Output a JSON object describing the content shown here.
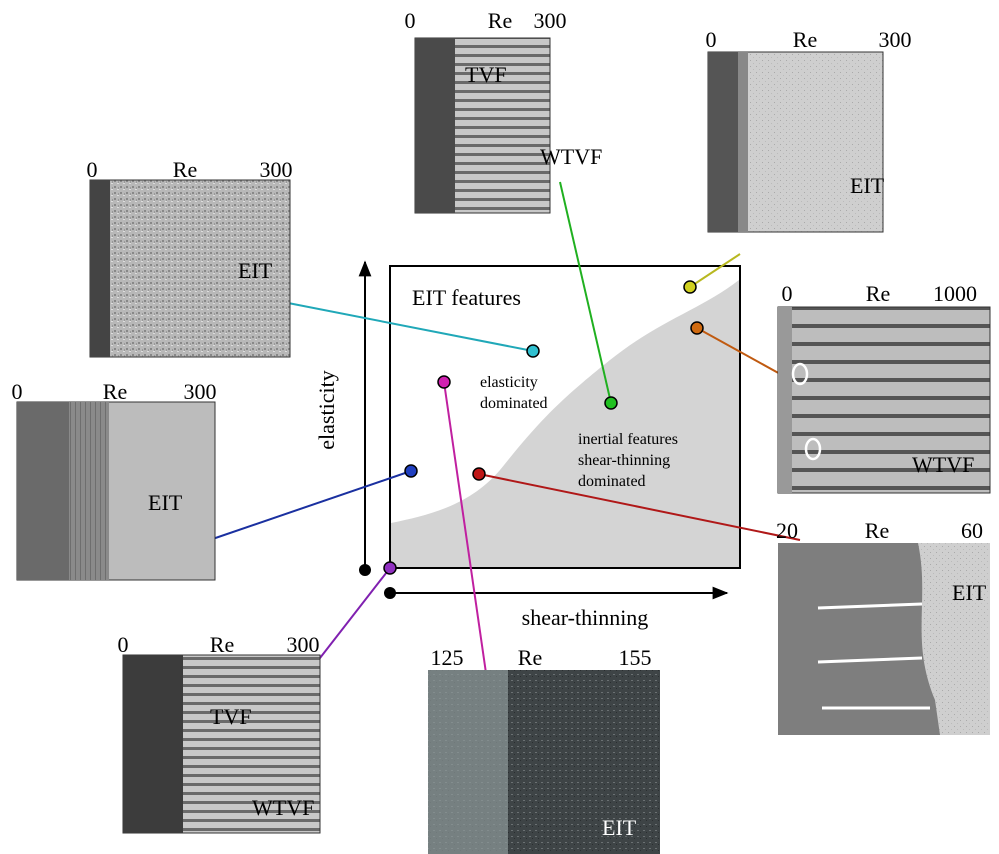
{
  "central": {
    "y_axis_label": "elasticity",
    "x_axis_label": "shear-thinning",
    "title": "EIT features",
    "region_upper": [
      "elasticity",
      "dominated"
    ],
    "region_lower": [
      "inertial features",
      "shear-thinning",
      "dominated"
    ]
  },
  "panels": [
    {
      "axis": [
        "0",
        "Re",
        "300"
      ],
      "labels": [
        "TVF",
        "WTVF"
      ]
    },
    {
      "axis": [
        "0",
        "Re",
        "300"
      ],
      "labels": [
        "EIT"
      ]
    },
    {
      "axis": [
        "0",
        "Re",
        "300"
      ],
      "labels": [
        "EIT"
      ]
    },
    {
      "axis": [
        "0",
        "Re",
        "300"
      ],
      "labels": [
        "EIT"
      ]
    },
    {
      "axis": [
        "0",
        "Re",
        "300"
      ],
      "labels": [
        "TVF",
        "WTVF"
      ]
    },
    {
      "axis": [
        "125",
        "Re",
        "155"
      ],
      "labels": [
        "EIT"
      ]
    },
    {
      "axis": [
        "0",
        "Re",
        "1000"
      ],
      "labels": [
        "WTVF"
      ]
    },
    {
      "axis": [
        "20",
        "Re",
        "60"
      ],
      "labels": [
        "EIT"
      ]
    }
  ]
}
